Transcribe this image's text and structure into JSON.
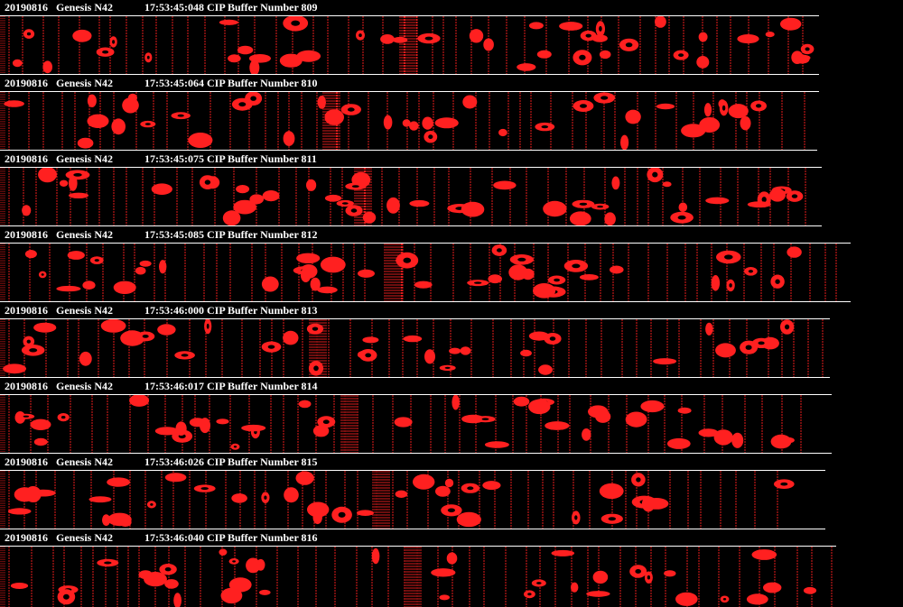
{
  "colors": {
    "background": "#000000",
    "particle": "#ff2020",
    "text": "#ffffff"
  },
  "frames": [
    {
      "date": "20190816",
      "probe": "Genesis N42",
      "time": "17:53:45:048",
      "buffer": "CIP Buffer Number 809"
    },
    {
      "date": "20190816",
      "probe": "Genesis N42",
      "time": "17:53:45:064",
      "buffer": "CIP Buffer Number 810"
    },
    {
      "date": "20190816",
      "probe": "Genesis N42",
      "time": "17:53:45:075",
      "buffer": "CIP Buffer Number 811"
    },
    {
      "date": "20190816",
      "probe": "Genesis N42",
      "time": "17:53:45:085",
      "buffer": "CIP Buffer Number 812"
    },
    {
      "date": "20190816",
      "probe": "Genesis N42",
      "time": "17:53:46:000",
      "buffer": "CIP Buffer Number 813"
    },
    {
      "date": "20190816",
      "probe": "Genesis N42",
      "time": "17:53:46:017",
      "buffer": "CIP Buffer Number 814"
    },
    {
      "date": "20190816",
      "probe": "Genesis N42",
      "time": "17:53:46:026",
      "buffer": "CIP Buffer Number 815"
    },
    {
      "date": "20190816",
      "probe": "Genesis N42",
      "time": "17:53:46:040",
      "buffer": "CIP Buffer Number 816"
    }
  ]
}
